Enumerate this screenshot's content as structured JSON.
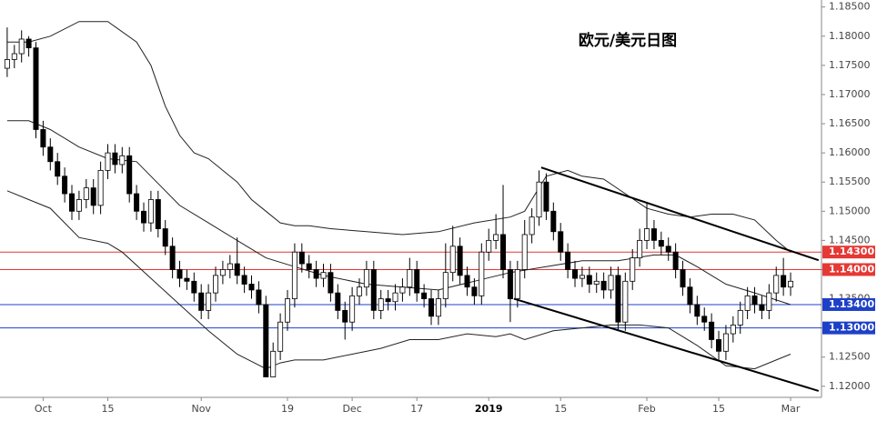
{
  "chart_data": {
    "type": "candlestick",
    "title": "欧元/美元日图",
    "categories": [
      null,
      null,
      null,
      null,
      null,
      "Oct",
      null,
      null,
      null,
      null,
      null,
      null,
      null,
      null,
      "15",
      null,
      null,
      null,
      null,
      null,
      null,
      null,
      null,
      null,
      null,
      null,
      null,
      "Nov",
      null,
      null,
      null,
      null,
      null,
      null,
      null,
      null,
      null,
      null,
      null,
      "19",
      null,
      null,
      null,
      null,
      null,
      null,
      null,
      null,
      "Dec",
      null,
      null,
      null,
      null,
      null,
      null,
      null,
      null,
      "17",
      null,
      null,
      null,
      null,
      null,
      null,
      null,
      null,
      null,
      "2019",
      null,
      null,
      null,
      null,
      null,
      null,
      null,
      null,
      null,
      "15",
      null,
      null,
      null,
      null,
      null,
      null,
      null,
      null,
      null,
      null,
      null,
      "Feb",
      null,
      null,
      null,
      null,
      null,
      null,
      null,
      null,
      null,
      "15",
      null,
      null,
      null,
      null,
      null,
      null,
      null,
      null,
      null,
      "Mar"
    ],
    "open": [
      1.1745,
      1.176,
      1.177,
      1.1795,
      1.178,
      1.164,
      1.161,
      1.1585,
      1.156,
      1.153,
      1.15,
      1.152,
      1.154,
      1.151,
      1.157,
      1.16,
      1.158,
      1.1595,
      1.153,
      1.15,
      1.148,
      1.152,
      1.147,
      1.144,
      1.14,
      1.1385,
      1.138,
      1.136,
      1.133,
      1.136,
      1.139,
      1.14,
      1.141,
      1.139,
      1.1375,
      1.1365,
      1.134,
      1.1216,
      1.126,
      1.131,
      1.135,
      1.143,
      1.141,
      1.14,
      1.1385,
      1.1395,
      1.136,
      1.133,
      1.131,
      1.1355,
      1.137,
      1.14,
      1.133,
      1.135,
      1.1345,
      1.136,
      1.137,
      1.14,
      1.136,
      1.135,
      1.132,
      1.135,
      1.1395,
      1.144,
      1.139,
      1.137,
      1.1355,
      1.143,
      1.145,
      1.146,
      1.14,
      1.135,
      1.14,
      1.146,
      1.149,
      1.155,
      1.15,
      1.1465,
      1.143,
      1.14,
      1.1385,
      1.139,
      1.1375,
      1.138,
      1.1365,
      1.139,
      1.131,
      1.138,
      1.142,
      1.145,
      1.147,
      1.145,
      1.144,
      1.143,
      1.14,
      1.137,
      1.134,
      1.132,
      1.131,
      1.128,
      1.126,
      1.129,
      1.1305,
      1.133,
      1.1355,
      1.134,
      1.133,
      1.136,
      1.139,
      1.137
    ],
    "high": [
      1.1815,
      1.1785,
      1.181,
      1.18,
      1.179,
      1.1655,
      1.1625,
      1.16,
      1.1575,
      1.1545,
      1.1535,
      1.1555,
      1.1555,
      1.1585,
      1.1615,
      1.1615,
      1.161,
      1.161,
      1.1545,
      1.1515,
      1.1535,
      1.1535,
      1.1485,
      1.1455,
      1.1415,
      1.14,
      1.1395,
      1.1375,
      1.1375,
      1.1405,
      1.1415,
      1.1425,
      1.1455,
      1.1405,
      1.139,
      1.138,
      1.1355,
      1.1275,
      1.1325,
      1.1365,
      1.1445,
      1.1445,
      1.1425,
      1.1415,
      1.141,
      1.141,
      1.1375,
      1.1345,
      1.137,
      1.1385,
      1.1415,
      1.1415,
      1.1365,
      1.1365,
      1.1375,
      1.1385,
      1.142,
      1.1415,
      1.1375,
      1.1365,
      1.1365,
      1.1445,
      1.1475,
      1.1455,
      1.1405,
      1.1385,
      1.1445,
      1.147,
      1.1495,
      1.1545,
      1.1415,
      1.1415,
      1.1485,
      1.1505,
      1.157,
      1.1565,
      1.1515,
      1.148,
      1.1445,
      1.1415,
      1.1405,
      1.1405,
      1.1395,
      1.1395,
      1.1405,
      1.1405,
      1.1395,
      1.1435,
      1.147,
      1.1515,
      1.1485,
      1.1465,
      1.1455,
      1.1445,
      1.1415,
      1.1385,
      1.1355,
      1.1335,
      1.1325,
      1.1295,
      1.1305,
      1.132,
      1.1345,
      1.137,
      1.137,
      1.1355,
      1.1375,
      1.1405,
      1.142,
      1.1395
    ],
    "low": [
      1.173,
      1.1745,
      1.1755,
      1.1765,
      1.1625,
      1.1595,
      1.157,
      1.1545,
      1.1515,
      1.1485,
      1.1485,
      1.1505,
      1.1495,
      1.1495,
      1.1555,
      1.1565,
      1.1565,
      1.1515,
      1.1485,
      1.1465,
      1.1465,
      1.1455,
      1.1425,
      1.1385,
      1.137,
      1.1365,
      1.1345,
      1.1315,
      1.1315,
      1.1345,
      1.1375,
      1.1385,
      1.1375,
      1.136,
      1.135,
      1.1325,
      1.1216,
      1.1216,
      1.1245,
      1.1295,
      1.1335,
      1.1395,
      1.1385,
      1.137,
      1.137,
      1.1345,
      1.1315,
      1.128,
      1.1295,
      1.134,
      1.1355,
      1.1315,
      1.1315,
      1.133,
      1.133,
      1.1345,
      1.1355,
      1.1345,
      1.1335,
      1.1305,
      1.1305,
      1.1335,
      1.138,
      1.1375,
      1.1355,
      1.134,
      1.134,
      1.1415,
      1.1435,
      1.1385,
      1.131,
      1.1335,
      1.1385,
      1.1445,
      1.1475,
      1.1485,
      1.145,
      1.1415,
      1.1385,
      1.137,
      1.137,
      1.136,
      1.136,
      1.135,
      1.135,
      1.1295,
      1.1295,
      1.1365,
      1.1405,
      1.1435,
      1.1435,
      1.1425,
      1.1415,
      1.1385,
      1.1355,
      1.1325,
      1.1305,
      1.1295,
      1.1265,
      1.1245,
      1.1245,
      1.1275,
      1.129,
      1.1315,
      1.1325,
      1.1315,
      1.1315,
      1.1345,
      1.1355,
      1.1355
    ],
    "close": [
      1.176,
      1.177,
      1.1795,
      1.178,
      1.164,
      1.161,
      1.1585,
      1.156,
      1.153,
      1.15,
      1.152,
      1.154,
      1.151,
      1.157,
      1.16,
      1.158,
      1.1595,
      1.153,
      1.15,
      1.148,
      1.152,
      1.147,
      1.144,
      1.14,
      1.1385,
      1.138,
      1.136,
      1.133,
      1.136,
      1.139,
      1.14,
      1.141,
      1.139,
      1.1375,
      1.1365,
      1.134,
      1.1216,
      1.126,
      1.131,
      1.135,
      1.143,
      1.141,
      1.14,
      1.1385,
      1.1395,
      1.136,
      1.133,
      1.131,
      1.1355,
      1.137,
      1.14,
      1.133,
      1.135,
      1.1345,
      1.136,
      1.137,
      1.14,
      1.136,
      1.135,
      1.132,
      1.135,
      1.1395,
      1.144,
      1.139,
      1.137,
      1.1355,
      1.143,
      1.145,
      1.146,
      1.14,
      1.135,
      1.14,
      1.146,
      1.149,
      1.155,
      1.15,
      1.1465,
      1.143,
      1.14,
      1.1385,
      1.139,
      1.1375,
      1.138,
      1.1365,
      1.139,
      1.131,
      1.138,
      1.142,
      1.145,
      1.147,
      1.145,
      1.144,
      1.143,
      1.14,
      1.137,
      1.134,
      1.132,
      1.131,
      1.128,
      1.126,
      1.129,
      1.1305,
      1.133,
      1.1355,
      1.134,
      1.133,
      1.136,
      1.139,
      1.137,
      1.138
    ],
    "up_color": "#ffffff",
    "down_color": "#000000",
    "xlim": [
      -1,
      113.3
    ],
    "ylim": [
      1.1181,
      1.1862
    ],
    "yticks": [
      {
        "value": 1.12,
        "label": "1.12000"
      },
      {
        "value": 1.125,
        "label": "1.12500"
      },
      {
        "value": 1.13,
        "label": "1.13000"
      },
      {
        "value": 1.135,
        "label": "1.13500"
      },
      {
        "value": 1.14,
        "label": "1.14000"
      },
      {
        "value": 1.145,
        "label": "1.14500"
      },
      {
        "value": 1.15,
        "label": "1.15000"
      },
      {
        "value": 1.155,
        "label": "1.15500"
      },
      {
        "value": 1.16,
        "label": "1.16000"
      },
      {
        "value": 1.165,
        "label": "1.16500"
      },
      {
        "value": 1.17,
        "label": "1.17000"
      },
      {
        "value": 1.175,
        "label": "1.17500"
      },
      {
        "value": 1.18,
        "label": "1.18000"
      },
      {
        "value": 1.185,
        "label": "1.18500"
      }
    ],
    "grid": false,
    "bands": [
      {
        "color": "#222222",
        "x": [
          0,
          3,
          6,
          10,
          14,
          18,
          20,
          22,
          24,
          26,
          28,
          30,
          32,
          34,
          36,
          38,
          40,
          42,
          45,
          50,
          55,
          60,
          65,
          70,
          72,
          75,
          78,
          80,
          83,
          86,
          89,
          92,
          95,
          98,
          101,
          104,
          107,
          109
        ],
        "values": [
          1.179,
          1.179,
          1.18,
          1.1825,
          1.1825,
          1.179,
          1.175,
          1.168,
          1.163,
          1.16,
          1.159,
          1.157,
          1.155,
          1.152,
          1.15,
          1.148,
          1.1475,
          1.1475,
          1.147,
          1.1465,
          1.146,
          1.1465,
          1.148,
          1.149,
          1.15,
          1.156,
          1.157,
          1.156,
          1.1555,
          1.153,
          1.1505,
          1.1495,
          1.149,
          1.1495,
          1.1495,
          1.1485,
          1.145,
          1.143
        ]
      },
      {
        "color": "#222222",
        "x": [
          0,
          3,
          6,
          10,
          14,
          18,
          20,
          24,
          28,
          32,
          36,
          40,
          44,
          50,
          55,
          60,
          65,
          70,
          75,
          80,
          85,
          90,
          93,
          96,
          100,
          104,
          109
        ],
        "values": [
          1.1655,
          1.1655,
          1.164,
          1.161,
          1.159,
          1.1585,
          1.156,
          1.151,
          1.148,
          1.145,
          1.142,
          1.1405,
          1.139,
          1.1375,
          1.137,
          1.1365,
          1.138,
          1.1395,
          1.1405,
          1.1415,
          1.1415,
          1.1425,
          1.1425,
          1.1405,
          1.1375,
          1.136,
          1.134
        ]
      },
      {
        "color": "#222222",
        "x": [
          0,
          3,
          6,
          10,
          14,
          16,
          20,
          24,
          28,
          32,
          36,
          38,
          40,
          44,
          48,
          52,
          56,
          60,
          64,
          68,
          70,
          72,
          76,
          80,
          84,
          88,
          92,
          96,
          100,
          104,
          107,
          109
        ],
        "values": [
          1.1535,
          1.152,
          1.1505,
          1.1455,
          1.1445,
          1.143,
          1.1385,
          1.134,
          1.1295,
          1.1255,
          1.123,
          1.124,
          1.1245,
          1.1245,
          1.1255,
          1.1265,
          1.128,
          1.128,
          1.129,
          1.1285,
          1.129,
          1.128,
          1.1295,
          1.13,
          1.1305,
          1.1305,
          1.13,
          1.127,
          1.1235,
          1.123,
          1.1245,
          1.1255
        ]
      }
    ],
    "trendlines": [
      {
        "color": "#000000",
        "x": [
          74.3,
          112.9
        ],
        "values": [
          1.1575,
          1.1416
        ]
      },
      {
        "color": "#000000",
        "x": [
          70.5,
          112.9
        ],
        "values": [
          1.135,
          1.1192
        ]
      }
    ],
    "levels": [
      {
        "value": 1.143,
        "label": "1.14300",
        "color": "#e53935"
      },
      {
        "value": 1.14,
        "label": "1.14000",
        "color": "#e53935"
      },
      {
        "value": 1.134,
        "label": "1.13400",
        "color": "#1e40c8"
      },
      {
        "value": 1.13,
        "label": "1.13000",
        "color": "#1e40c8"
      }
    ]
  }
}
